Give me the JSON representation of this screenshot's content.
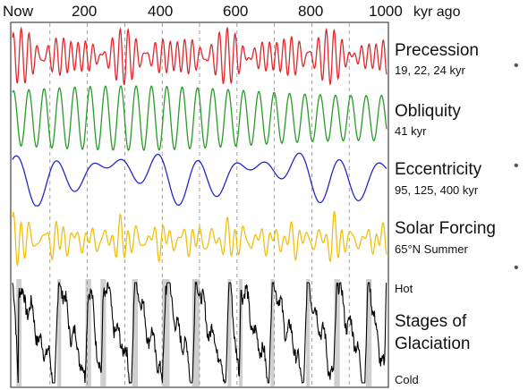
{
  "chart_data": {
    "type": "line",
    "x_axis": {
      "ticks": [
        "Now",
        "200",
        "400",
        "600",
        "800",
        "1000"
      ],
      "tick_values": [
        0,
        200,
        400,
        600,
        800,
        1000
      ],
      "unit": "kyr ago",
      "range": [
        0,
        1000
      ],
      "grid": "dashed vertical lines every 100 kyr"
    },
    "series": [
      {
        "name": "Precession",
        "detail": "19, 22, 24 kyr",
        "color": "#e0282d",
        "periods_kyr": [
          19,
          22,
          24
        ]
      },
      {
        "name": "Obliquity",
        "detail": "41 kyr",
        "color": "#2a9a2a",
        "periods_kyr": [
          41
        ]
      },
      {
        "name": "Eccentricity",
        "detail": "95, 125, 400 kyr",
        "color": "#2626c8",
        "periods_kyr": [
          95,
          125,
          400
        ]
      },
      {
        "name": "Solar Forcing",
        "detail": "65°N Summer",
        "color": "#f0c010"
      },
      {
        "name": "Stages of Glaciation",
        "detail": "",
        "color": "#000000"
      }
    ],
    "glaciation_labels": {
      "top": "Hot",
      "bottom": "Cold"
    },
    "interglacial_bands_kyr": [
      [
        10,
        24
      ],
      [
        120,
        130
      ],
      [
        195,
        210
      ],
      [
        235,
        250
      ],
      [
        320,
        335
      ],
      [
        400,
        420
      ],
      [
        480,
        500
      ],
      [
        575,
        585
      ],
      [
        605,
        615
      ],
      [
        690,
        700
      ],
      [
        785,
        795
      ],
      [
        860,
        875
      ],
      [
        945,
        960
      ]
    ]
  }
}
